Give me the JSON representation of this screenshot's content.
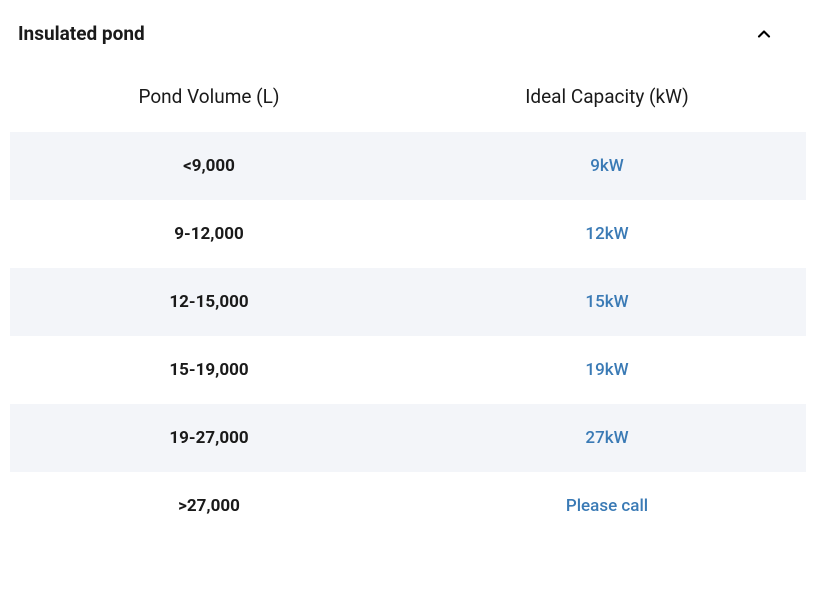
{
  "accordion": {
    "title": "Insulated pond"
  },
  "table": {
    "columns": [
      "Pond Volume (L)",
      "Ideal Capacity (kW)"
    ],
    "rows": [
      {
        "volume": "<9,000",
        "capacity": "9kW",
        "striped": true
      },
      {
        "volume": "9-12,000",
        "capacity": "12kW",
        "striped": false
      },
      {
        "volume": "12-15,000",
        "capacity": "15kW",
        "striped": true
      },
      {
        "volume": "15-19,000",
        "capacity": "19kW",
        "striped": false
      },
      {
        "volume": "19-27,000",
        "capacity": "27kW",
        "striped": true
      },
      {
        "volume": ">27,000",
        "capacity": "Please call",
        "striped": false
      }
    ]
  },
  "colors": {
    "background": "#ffffff",
    "text_primary": "#1a1a1a",
    "link": "#3a7ab5",
    "row_striped": "#f3f5f9"
  },
  "typography": {
    "title_fontsize": 19,
    "title_fontweight": 700,
    "header_fontsize": 19,
    "header_fontweight": 400,
    "cell_fontsize": 17,
    "cell_fontweight_bold": 700,
    "cell_fontweight_link": 500
  }
}
